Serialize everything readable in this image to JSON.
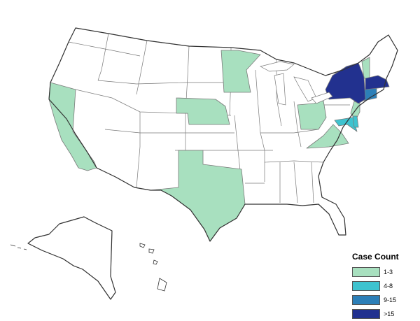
{
  "map": {
    "type": "choropleth",
    "region": "United States",
    "legend": {
      "title": "Case Count",
      "placement": "bottom-right",
      "bins": [
        {
          "label": "1-3",
          "color": "#a8e0bf"
        },
        {
          "label": "4-8",
          "color": "#3ec3cf"
        },
        {
          "label": "9-15",
          "color": "#2c7fb8"
        },
        {
          "label": ">15",
          "color": "#22318f"
        }
      ]
    },
    "default_color": "#ffffff",
    "states": [
      {
        "name": "California",
        "bin": "1-3"
      },
      {
        "name": "Texas",
        "bin": "1-3"
      },
      {
        "name": "Nebraska",
        "bin": "1-3"
      },
      {
        "name": "Minnesota",
        "bin": "1-3"
      },
      {
        "name": "Ohio",
        "bin": "1-3"
      },
      {
        "name": "Virginia",
        "bin": "1-3"
      },
      {
        "name": "New Jersey",
        "bin": "1-3"
      },
      {
        "name": "Vermont",
        "bin": "1-3"
      },
      {
        "name": "Maryland",
        "bin": "4-8"
      },
      {
        "name": "Delaware",
        "bin": "4-8"
      },
      {
        "name": "Connecticut",
        "bin": "9-15"
      },
      {
        "name": "New York",
        "bin": ">15"
      },
      {
        "name": "Massachusetts",
        "bin": ">15"
      }
    ]
  }
}
